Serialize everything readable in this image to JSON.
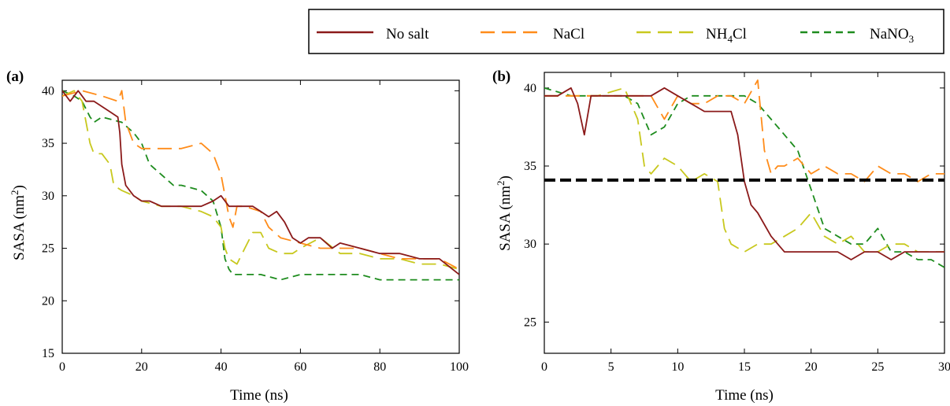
{
  "legend": {
    "position": "top-right",
    "items": [
      {
        "label": "No salt",
        "color": "#8b1a1a",
        "dash": "solid"
      },
      {
        "label": "NaCl",
        "color": "#ff8c1a",
        "dash": "dashed"
      },
      {
        "label": "NH4Cl",
        "label_main": "NH",
        "label_sub": "4",
        "label_tail": "Cl",
        "color": "#c8c81e",
        "dash": "dashed"
      },
      {
        "label": "NaNO3",
        "label_main": "NaNO",
        "label_sub": "3",
        "label_tail": "",
        "color": "#1e8c1e",
        "dash": "dashed"
      }
    ]
  },
  "chart_data": [
    {
      "panel_label": "(a)",
      "type": "line",
      "xlabel": "Time (ns)",
      "ylabel_main": "SASA (nm",
      "ylabel_sup": "2",
      "ylabel_tail": ")",
      "xlim": [
        0,
        100
      ],
      "ylim": [
        15,
        41
      ],
      "xticks": [
        0,
        20,
        40,
        60,
        80,
        100
      ],
      "yticks": [
        15,
        20,
        25,
        30,
        35,
        40
      ],
      "grid": false,
      "series": [
        {
          "name": "No salt",
          "color": "#8b1a1a",
          "dash": "solid",
          "x": [
            0,
            2,
            4,
            6,
            8,
            10,
            12,
            14,
            14.5,
            15,
            16,
            18,
            20,
            22,
            25,
            30,
            35,
            38,
            40,
            42,
            45,
            48,
            50,
            52,
            54,
            56,
            58,
            60,
            62,
            65,
            68,
            70,
            75,
            80,
            85,
            90,
            95,
            100
          ],
          "y": [
            40,
            39,
            40,
            39,
            39,
            38.5,
            38,
            37.5,
            36,
            33,
            31,
            30,
            29.5,
            29.5,
            29,
            29,
            29,
            29.5,
            30,
            29,
            29,
            29,
            28.5,
            28,
            28.5,
            27.5,
            26,
            25.5,
            26,
            26,
            25,
            25.5,
            25,
            24.5,
            24.5,
            24,
            24,
            22.5
          ]
        },
        {
          "name": "NaCl",
          "color": "#ff8c1a",
          "dash": "dashed",
          "x": [
            0,
            5,
            10,
            14,
            15,
            16,
            18,
            20,
            25,
            30,
            35,
            38,
            40,
            42,
            43,
            44,
            46,
            50,
            52,
            55,
            60,
            65,
            70,
            75,
            80,
            85,
            90,
            95,
            100
          ],
          "y": [
            39.5,
            40,
            39.5,
            39,
            40,
            37,
            35,
            34.5,
            34.5,
            34.5,
            35,
            34,
            32,
            28,
            27,
            29,
            29,
            28.5,
            27,
            26,
            25.5,
            25,
            25,
            25,
            24.5,
            24,
            24,
            24,
            23
          ]
        },
        {
          "name": "NH4Cl",
          "color": "#c8c81e",
          "dash": "dashed",
          "x": [
            0,
            3,
            5,
            7,
            8,
            10,
            12,
            13,
            15,
            18,
            20,
            25,
            30,
            35,
            38,
            40,
            41,
            42,
            44,
            46,
            48,
            50,
            52,
            55,
            58,
            60,
            65,
            70,
            75,
            80,
            85,
            90,
            95,
            100
          ],
          "y": [
            39.5,
            40,
            39,
            35,
            34,
            34,
            33,
            31,
            30.5,
            30,
            29.5,
            29,
            29,
            28.5,
            28,
            27,
            25,
            24,
            23.5,
            25,
            26.5,
            26.5,
            25,
            24.5,
            24.5,
            25,
            26,
            24.5,
            24.5,
            24,
            24,
            23.5,
            23.5,
            23
          ]
        },
        {
          "name": "NaNO3",
          "color": "#1e8c1e",
          "dash": "dashed",
          "x": [
            0,
            3,
            5,
            7,
            8,
            10,
            15,
            18,
            20,
            22,
            25,
            28,
            30,
            35,
            38,
            40,
            41,
            42,
            43,
            45,
            50,
            55,
            60,
            65,
            70,
            75,
            80,
            85,
            90,
            95,
            100
          ],
          "y": [
            40,
            39.5,
            39,
            37.5,
            37,
            37.5,
            37,
            36,
            35,
            33,
            32,
            31,
            31,
            30.5,
            29.5,
            27,
            24,
            23,
            22.5,
            22.5,
            22.5,
            22,
            22.5,
            22.5,
            22.5,
            22.5,
            22,
            22,
            22,
            22,
            22
          ]
        }
      ]
    },
    {
      "panel_label": "(b)",
      "type": "line",
      "xlabel": "Time (ns)",
      "ylabel_main": "SASA (nm",
      "ylabel_sup": "2",
      "ylabel_tail": ")",
      "xlim": [
        0,
        30
      ],
      "ylim": [
        23,
        41
      ],
      "xticks": [
        0,
        5,
        10,
        15,
        20,
        25,
        30
      ],
      "yticks": [
        25,
        30,
        35,
        40
      ],
      "grid": false,
      "reference_line": {
        "y": 34.1,
        "color": "#000000",
        "dash": "dashed"
      },
      "series": [
        {
          "name": "No salt",
          "color": "#8b1a1a",
          "dash": "solid",
          "x": [
            0,
            1,
            2,
            2.5,
            3,
            3.5,
            4,
            5,
            6,
            7,
            8,
            9,
            10,
            11,
            12,
            13,
            14,
            14.5,
            15,
            15.5,
            16,
            17,
            18,
            19,
            20,
            21,
            22,
            23,
            24,
            25,
            26,
            27,
            28,
            29,
            30
          ],
          "y": [
            39.5,
            39.5,
            40,
            39,
            37,
            39.5,
            39.5,
            39.5,
            39.5,
            39.5,
            39.5,
            40,
            39.5,
            39,
            38.5,
            38.5,
            38.5,
            37,
            34,
            32.5,
            32,
            30.5,
            29.5,
            29.5,
            29.5,
            29.5,
            29.5,
            29,
            29.5,
            29.5,
            29,
            29.5,
            29.5,
            29.5,
            29.5
          ]
        },
        {
          "name": "NaCl",
          "color": "#ff8c1a",
          "dash": "dashed",
          "x": [
            0,
            2,
            4,
            6,
            8,
            9,
            10,
            11,
            12,
            13,
            14,
            15,
            16,
            16.5,
            17,
            17.5,
            18,
            19,
            20,
            21,
            22,
            23,
            24,
            25,
            26,
            27,
            28,
            29,
            30
          ],
          "y": [
            39.5,
            39.5,
            39.5,
            39.5,
            39.5,
            38,
            39.5,
            39,
            39,
            39.5,
            39.5,
            39,
            40.5,
            36,
            34.5,
            35,
            35,
            35.5,
            34.5,
            35,
            34.5,
            34.5,
            34,
            35,
            34.5,
            34.5,
            34,
            34.5,
            34.5
          ]
        },
        {
          "name": "NH4Cl",
          "color": "#c8c81e",
          "dash": "dashed",
          "x": [
            0,
            2,
            4,
            6,
            7,
            7.5,
            8,
            9,
            10,
            11,
            12,
            13,
            13.5,
            14,
            15,
            16,
            17,
            18,
            19,
            20,
            21,
            22,
            23,
            24,
            25,
            26,
            27,
            28,
            29,
            30
          ],
          "y": [
            39.5,
            39.5,
            39.5,
            40,
            38,
            35,
            34.5,
            35.5,
            35,
            34,
            34.5,
            34,
            31,
            30,
            29.5,
            30,
            30,
            30.5,
            31,
            32,
            30.5,
            30,
            30.5,
            29.5,
            29.5,
            30,
            30,
            29.5,
            29.5,
            29.5
          ]
        },
        {
          "name": "NaNO3",
          "color": "#1e8c1e",
          "dash": "dashed",
          "x": [
            0,
            2,
            4,
            6,
            7,
            8,
            9,
            10,
            11,
            12,
            13,
            14,
            15,
            16,
            17,
            18,
            19,
            20,
            21,
            22,
            23,
            24,
            25,
            26,
            27,
            28,
            29,
            30
          ],
          "y": [
            40,
            39.5,
            39.5,
            39.5,
            39,
            37,
            37.5,
            39,
            39.5,
            39.5,
            39.5,
            39.5,
            39.5,
            39,
            38,
            37,
            36,
            33.5,
            31,
            30.5,
            30,
            30,
            31,
            29.5,
            29.5,
            29,
            29,
            28.5
          ]
        }
      ]
    }
  ]
}
